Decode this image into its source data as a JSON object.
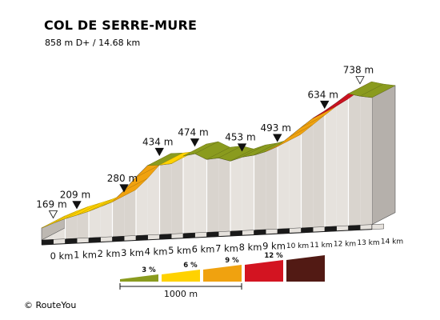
{
  "chart_data": {
    "type": "area",
    "title": "COL DE SERRE-MURE",
    "subtitle": "858 m D+ / 14.68 km",
    "x_unit": "km",
    "x_ticks": [
      "0 km",
      "1 km",
      "2 km",
      "3 km",
      "4 km",
      "5 km",
      "6 km",
      "7 km",
      "8 km",
      "9 km",
      "10 km",
      "11 km",
      "12 km",
      "13 km",
      "14 km"
    ],
    "profile": [
      {
        "km": 0.0,
        "elev": 169
      },
      {
        "km": 0.5,
        "elev": 190
      },
      {
        "km": 1.0,
        "elev": 209
      },
      {
        "km": 1.5,
        "elev": 224
      },
      {
        "km": 2.0,
        "elev": 240
      },
      {
        "km": 2.5,
        "elev": 260
      },
      {
        "km": 3.0,
        "elev": 280
      },
      {
        "km": 3.5,
        "elev": 328
      },
      {
        "km": 4.0,
        "elev": 384
      },
      {
        "km": 4.5,
        "elev": 434
      },
      {
        "km": 5.0,
        "elev": 436
      },
      {
        "km": 5.5,
        "elev": 442
      },
      {
        "km": 6.0,
        "elev": 474
      },
      {
        "km": 6.5,
        "elev": 484
      },
      {
        "km": 7.0,
        "elev": 460
      },
      {
        "km": 7.5,
        "elev": 466
      },
      {
        "km": 8.0,
        "elev": 453
      },
      {
        "km": 8.5,
        "elev": 470
      },
      {
        "km": 9.0,
        "elev": 478
      },
      {
        "km": 9.5,
        "elev": 493
      },
      {
        "km": 10.0,
        "elev": 515
      },
      {
        "km": 10.5,
        "elev": 555
      },
      {
        "km": 11.0,
        "elev": 595
      },
      {
        "km": 11.5,
        "elev": 634
      },
      {
        "km": 12.0,
        "elev": 665
      },
      {
        "km": 12.5,
        "elev": 700
      },
      {
        "km": 13.0,
        "elev": 738
      },
      {
        "km": 13.5,
        "elev": 728
      },
      {
        "km": 14.0,
        "elev": 722
      }
    ],
    "segment_colors": [
      "yellow",
      "yellow",
      "yellow",
      "yellow",
      "yellow",
      "yellow",
      "orange",
      "orange",
      "orange",
      "green",
      "yellow",
      "yellow",
      "green",
      "green",
      "green",
      "green",
      "green",
      "green",
      "green",
      "orange",
      "orange",
      "orange",
      "orange",
      "red",
      "red",
      "red",
      "green",
      "green"
    ],
    "peaks": [
      {
        "km": 0.0,
        "elev": 169,
        "label": "169 m",
        "marker": "open"
      },
      {
        "km": 1.0,
        "elev": 209,
        "label": "209 m",
        "marker": "filled"
      },
      {
        "km": 3.0,
        "elev": 280,
        "label": "280 m",
        "marker": "filled"
      },
      {
        "km": 4.5,
        "elev": 434,
        "label": "434 m",
        "marker": "filled"
      },
      {
        "km": 6.0,
        "elev": 474,
        "label": "474 m",
        "marker": "filled"
      },
      {
        "km": 8.0,
        "elev": 453,
        "label": "453 m",
        "marker": "filled"
      },
      {
        "km": 9.5,
        "elev": 493,
        "label": "493 m",
        "marker": "filled"
      },
      {
        "km": 11.5,
        "elev": 634,
        "label": "634 m",
        "marker": "filled"
      },
      {
        "km": 13.0,
        "elev": 738,
        "label": "738 m",
        "marker": "open"
      }
    ],
    "grade_legend": [
      {
        "label": "3 %",
        "color": "#8a9b1e"
      },
      {
        "label": "6 %",
        "color": "#ffd200"
      },
      {
        "label": "9 %",
        "color": "#f0a20f"
      },
      {
        "label": "12 %",
        "color": "#d31421"
      },
      {
        "label": "",
        "color": "#521a14"
      }
    ],
    "scale_label": "1000 m",
    "colors": {
      "green": "#8a9b1e",
      "yellow": "#ffd200",
      "orange": "#f0a20f",
      "red": "#d31421",
      "darkred": "#521a14"
    }
  },
  "credit": "© RouteYou"
}
